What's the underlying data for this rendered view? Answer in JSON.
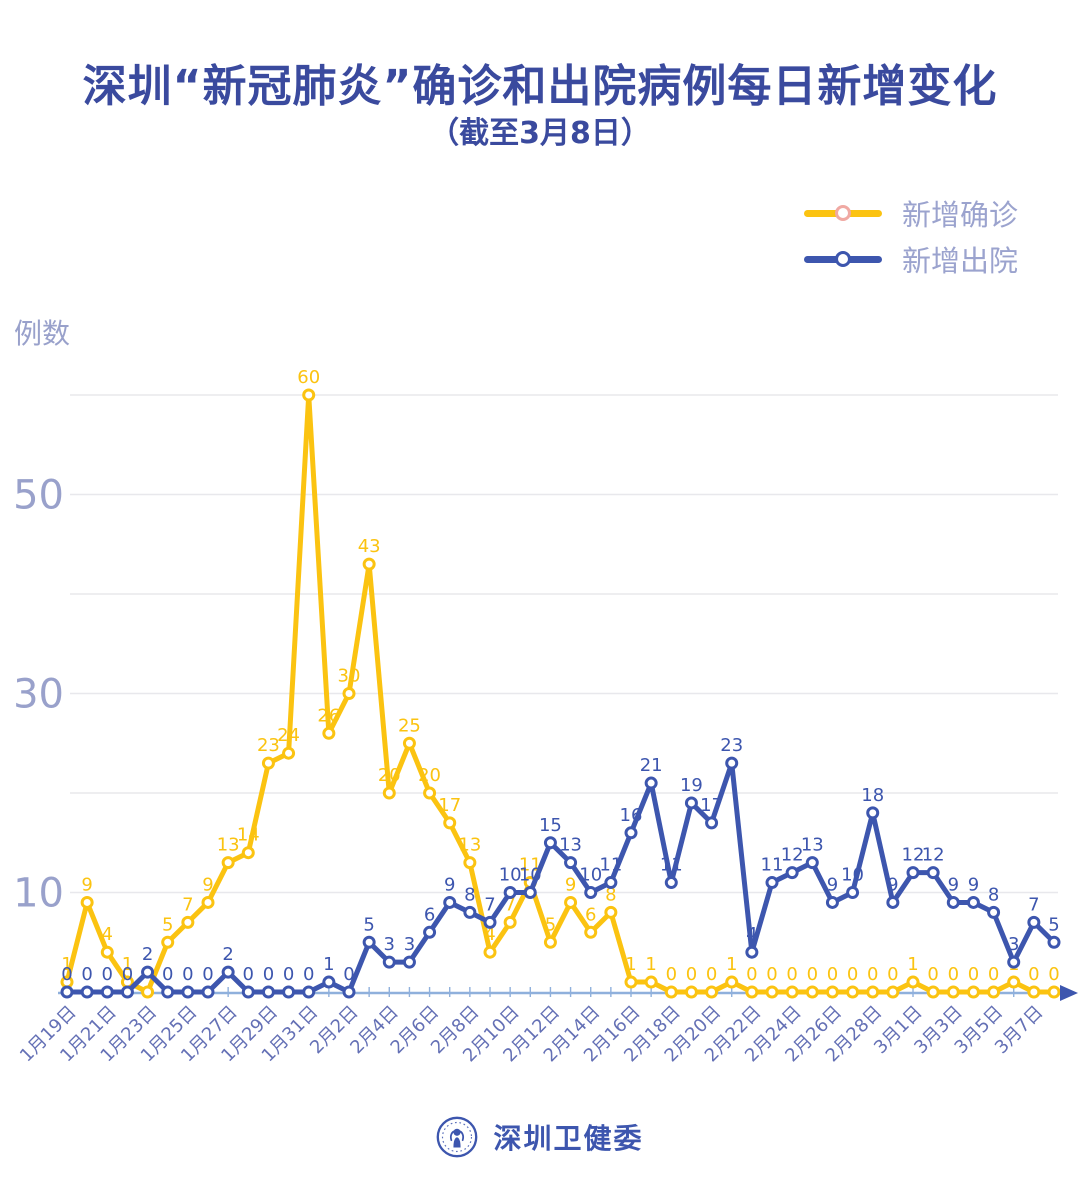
{
  "page": {
    "title": "深圳“新冠肺炎”确诊和出院病例每日新增变化",
    "subtitle": "（截至3月8日）",
    "background": "#FFFFFF"
  },
  "y_axis": {
    "label": "例数",
    "tick_labels": [
      10,
      30,
      50
    ]
  },
  "footer": {
    "org_name": "深圳卫健委",
    "logo": "shenzhen-health-commission-emblem"
  },
  "colors": {
    "confirmed": "#FBC311",
    "discharged": "#3D56AE",
    "title_text": "#3A4A9E",
    "axis_text": "#99A1CB",
    "date_text": "#6470B5",
    "gridline": "#E8E8EC",
    "axis_line": "#8FB0DC",
    "legend_text": "#9BA3CE",
    "legend_confirmed_ring": "#F0A9A3"
  },
  "chart_data": {
    "type": "line",
    "title": "深圳“新冠肺炎”确诊和出院病例每日新增变化",
    "subtitle": "（截至3月8日）",
    "ylabel": "例数",
    "ylim": [
      0,
      63
    ],
    "grid": "horizontal-only",
    "gridline_values": [
      10,
      20,
      30,
      40,
      50,
      60
    ],
    "y_labeled_values": [
      10,
      30,
      50
    ],
    "legend_position": "top-right",
    "x_tick_every": 2,
    "x": [
      "1月19日",
      "1月20日",
      "1月21日",
      "1月22日",
      "1月23日",
      "1月24日",
      "1月25日",
      "1月26日",
      "1月27日",
      "1月28日",
      "1月29日",
      "1月30日",
      "1月31日",
      "2月1日",
      "2月2日",
      "2月3日",
      "2月4日",
      "2月5日",
      "2月6日",
      "2月7日",
      "2月8日",
      "2月9日",
      "2月10日",
      "2月11日",
      "2月12日",
      "2月13日",
      "2月14日",
      "2月15日",
      "2月16日",
      "2月17日",
      "2月18日",
      "2月19日",
      "2月20日",
      "2月21日",
      "2月22日",
      "2月23日",
      "2月24日",
      "2月25日",
      "2月26日",
      "2月27日",
      "2月28日",
      "2月29日",
      "3月1日",
      "3月2日",
      "3月3日",
      "3月4日",
      "3月5日",
      "3月6日",
      "3月7日",
      "3月8日"
    ],
    "series": [
      {
        "name": "新增确诊",
        "color": "#FBC311",
        "values": [
          1,
          9,
          4,
          1,
          0,
          5,
          7,
          9,
          13,
          14,
          23,
          24,
          60,
          26,
          30,
          43,
          20,
          25,
          20,
          17,
          13,
          4,
          7,
          11,
          5,
          9,
          6,
          8,
          1,
          1,
          0,
          0,
          0,
          1,
          0,
          0,
          0,
          0,
          0,
          0,
          0,
          0,
          1,
          0,
          0,
          0,
          0,
          1,
          0,
          0
        ],
        "hidden_label_indexes": [
          4
        ]
      },
      {
        "name": "新增出院",
        "color": "#3D56AE",
        "values": [
          0,
          0,
          0,
          0,
          2,
          0,
          0,
          0,
          2,
          0,
          0,
          0,
          0,
          1,
          0,
          5,
          3,
          3,
          6,
          9,
          8,
          7,
          10,
          10,
          15,
          13,
          10,
          11,
          16,
          21,
          11,
          19,
          17,
          23,
          4,
          11,
          12,
          13,
          9,
          10,
          18,
          9,
          12,
          12,
          9,
          9,
          8,
          3,
          7,
          5
        ],
        "hidden_label_indexes": []
      }
    ]
  }
}
